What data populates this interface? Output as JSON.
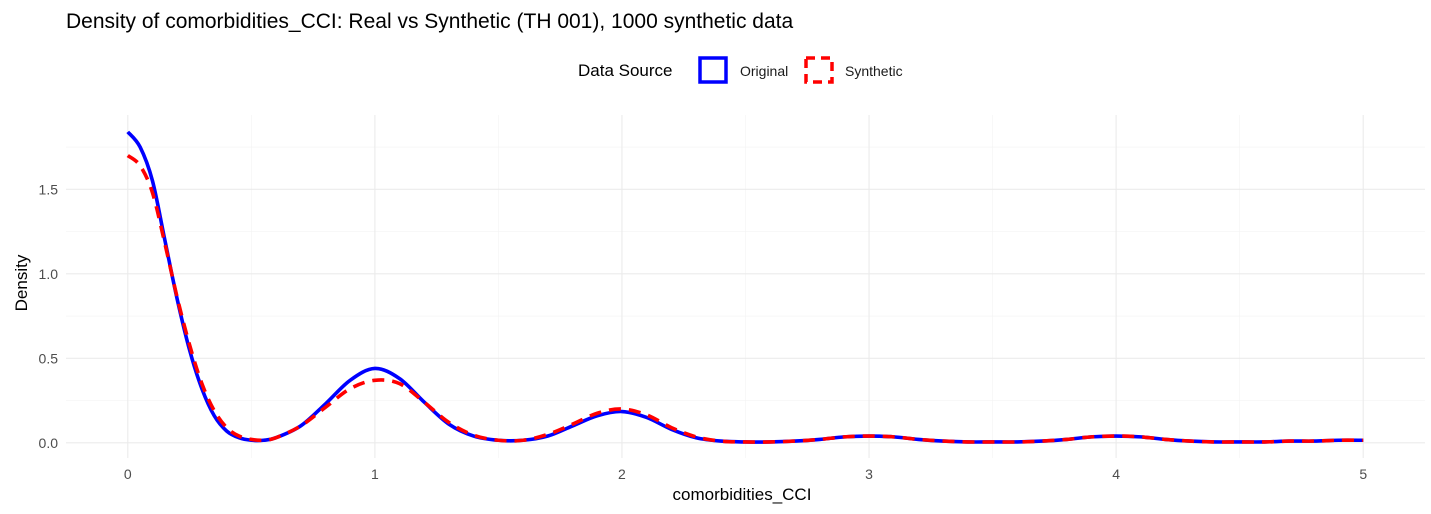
{
  "chart_data": {
    "type": "line",
    "title": "Density of comorbidities_CCI: Real vs Synthetic (TH 001), 1000 synthetic data",
    "xlabel": "comorbidities_CCI",
    "ylabel": "Density",
    "xlim": [
      -0.25,
      5.25
    ],
    "ylim": [
      -0.09,
      1.94
    ],
    "x_ticks": [
      0,
      1,
      2,
      3,
      4,
      5
    ],
    "x_tick_labels": [
      "0",
      "1",
      "2",
      "3",
      "4",
      "5"
    ],
    "y_ticks": [
      0.0,
      0.5,
      1.0,
      1.5
    ],
    "y_tick_labels": [
      "0.0",
      "0.5",
      "1.0",
      "1.5"
    ],
    "grid": true,
    "legend": {
      "title": "Data Source",
      "position": "top",
      "entries": [
        {
          "label": "Original",
          "color": "#0000ff",
          "linetype": "solid"
        },
        {
          "label": "Synthetic",
          "color": "#ff0000",
          "linetype": "dashed"
        }
      ]
    },
    "series": [
      {
        "name": "Original",
        "color": "#0000ff",
        "linetype": "solid",
        "x": [
          0,
          0.05,
          0.1,
          0.15,
          0.2,
          0.25,
          0.3,
          0.35,
          0.4,
          0.45,
          0.5,
          0.55,
          0.6,
          0.7,
          0.8,
          0.9,
          1.0,
          1.1,
          1.2,
          1.3,
          1.4,
          1.5,
          1.6,
          1.7,
          1.8,
          1.9,
          2.0,
          2.1,
          2.2,
          2.3,
          2.4,
          2.5,
          2.6,
          2.7,
          2.8,
          2.9,
          3.0,
          3.1,
          3.2,
          3.3,
          3.4,
          3.5,
          3.6,
          3.7,
          3.8,
          3.9,
          4.0,
          4.1,
          4.2,
          4.3,
          4.4,
          4.5,
          4.6,
          4.7,
          4.8,
          4.9,
          5.0
        ],
        "y": [
          1.84,
          1.75,
          1.55,
          1.2,
          0.85,
          0.55,
          0.32,
          0.16,
          0.07,
          0.03,
          0.015,
          0.015,
          0.03,
          0.1,
          0.23,
          0.37,
          0.44,
          0.38,
          0.24,
          0.11,
          0.04,
          0.015,
          0.015,
          0.04,
          0.1,
          0.16,
          0.185,
          0.15,
          0.08,
          0.03,
          0.01,
          0.005,
          0.005,
          0.01,
          0.02,
          0.035,
          0.04,
          0.035,
          0.02,
          0.01,
          0.005,
          0.005,
          0.005,
          0.01,
          0.02,
          0.035,
          0.04,
          0.035,
          0.02,
          0.01,
          0.005,
          0.005,
          0.005,
          0.01,
          0.01,
          0.015,
          0.015
        ]
      },
      {
        "name": "Synthetic",
        "color": "#ff0000",
        "linetype": "dashed",
        "x": [
          0,
          0.05,
          0.1,
          0.15,
          0.2,
          0.25,
          0.3,
          0.35,
          0.4,
          0.45,
          0.5,
          0.55,
          0.6,
          0.7,
          0.8,
          0.9,
          1.0,
          1.1,
          1.2,
          1.3,
          1.4,
          1.5,
          1.6,
          1.7,
          1.8,
          1.9,
          2.0,
          2.1,
          2.2,
          2.3,
          2.4,
          2.5,
          2.6,
          2.7,
          2.8,
          2.9,
          3.0,
          3.1,
          3.2,
          3.3,
          3.4,
          3.5,
          3.6,
          3.7,
          3.8,
          3.9,
          4.0,
          4.1,
          4.2,
          4.3,
          4.4,
          4.5,
          4.6,
          4.7,
          4.8,
          4.9,
          5.0
        ],
        "y": [
          1.7,
          1.64,
          1.48,
          1.18,
          0.86,
          0.58,
          0.35,
          0.19,
          0.09,
          0.04,
          0.02,
          0.015,
          0.03,
          0.1,
          0.21,
          0.32,
          0.37,
          0.35,
          0.24,
          0.12,
          0.045,
          0.015,
          0.015,
          0.05,
          0.11,
          0.175,
          0.2,
          0.165,
          0.09,
          0.035,
          0.01,
          0.005,
          0.005,
          0.01,
          0.02,
          0.035,
          0.04,
          0.035,
          0.02,
          0.01,
          0.005,
          0.005,
          0.005,
          0.01,
          0.02,
          0.035,
          0.04,
          0.035,
          0.02,
          0.01,
          0.005,
          0.005,
          0.005,
          0.01,
          0.01,
          0.015,
          0.015
        ]
      }
    ]
  }
}
